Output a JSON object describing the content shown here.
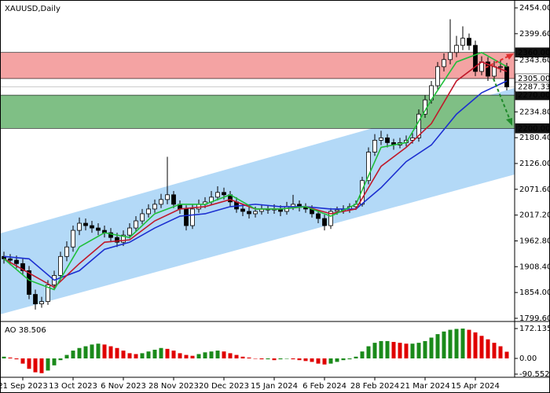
{
  "chart_data": {
    "type": "candlestick",
    "title": "XAUUSD,Daily",
    "categories": [
      null,
      null,
      null,
      "21 Sep 2023",
      null,
      null,
      null,
      null,
      null,
      null,
      null,
      "13 Oct 2023",
      null,
      null,
      null,
      null,
      null,
      null,
      null,
      "6 Nov 2023",
      null,
      null,
      null,
      null,
      null,
      null,
      null,
      "28 Nov 2023",
      null,
      null,
      null,
      null,
      null,
      null,
      null,
      "20 Dec 2023",
      null,
      null,
      null,
      null,
      null,
      null,
      null,
      "15 Jan 2024",
      null,
      null,
      null,
      null,
      null,
      null,
      null,
      "6 Feb 2024",
      null,
      null,
      null,
      null,
      null,
      null,
      null,
      "28 Feb 2024",
      null,
      null,
      null,
      null,
      null,
      null,
      null,
      "21 Mar 2024",
      null,
      null,
      null,
      null,
      null,
      null,
      null,
      "15 Apr 2024",
      null,
      null,
      null,
      null,
      null
    ],
    "ohlc": [
      [
        1930,
        1940,
        1915,
        1925
      ],
      [
        1925,
        1935,
        1912,
        1922
      ],
      [
        1922,
        1932,
        1905,
        1915
      ],
      [
        1915,
        1925,
        1890,
        1900
      ],
      [
        1900,
        1910,
        1840,
        1850
      ],
      [
        1850,
        1860,
        1818,
        1830
      ],
      [
        1830,
        1845,
        1822,
        1835
      ],
      [
        1835,
        1880,
        1828,
        1870
      ],
      [
        1870,
        1900,
        1860,
        1890
      ],
      [
        1890,
        1940,
        1882,
        1930
      ],
      [
        1930,
        1962,
        1920,
        1950
      ],
      [
        1950,
        1995,
        1940,
        1985
      ],
      [
        1985,
        2012,
        1975,
        2000
      ],
      [
        2000,
        2010,
        1985,
        1995
      ],
      [
        1995,
        2005,
        1980,
        1990
      ],
      [
        1990,
        2000,
        1975,
        1985
      ],
      [
        1985,
        1995,
        1970,
        1980
      ],
      [
        1980,
        1990,
        1960,
        1970
      ],
      [
        1970,
        1980,
        1950,
        1960
      ],
      [
        1960,
        1985,
        1952,
        1975
      ],
      [
        1975,
        2000,
        1968,
        1990
      ],
      [
        1990,
        2015,
        1982,
        2005
      ],
      [
        2005,
        2030,
        1998,
        2020
      ],
      [
        2020,
        2040,
        2012,
        2030
      ],
      [
        2030,
        2050,
        2022,
        2040
      ],
      [
        2040,
        2062,
        2032,
        2050
      ],
      [
        2050,
        2140,
        2040,
        2060
      ],
      [
        2060,
        2068,
        2032,
        2040
      ],
      [
        2040,
        2048,
        2020,
        2030
      ],
      [
        2030,
        2038,
        1985,
        1995
      ],
      [
        1995,
        2040,
        1988,
        2030
      ],
      [
        2030,
        2050,
        2022,
        2040
      ],
      [
        2040,
        2055,
        2032,
        2045
      ],
      [
        2045,
        2068,
        2038,
        2055
      ],
      [
        2055,
        2078,
        2048,
        2065
      ],
      [
        2065,
        2075,
        2050,
        2060
      ],
      [
        2060,
        2068,
        2035,
        2045
      ],
      [
        2045,
        2055,
        2022,
        2030
      ],
      [
        2030,
        2040,
        2015,
        2025
      ],
      [
        2025,
        2035,
        2010,
        2020
      ],
      [
        2020,
        2035,
        2012,
        2025
      ],
      [
        2025,
        2040,
        2018,
        2030
      ],
      [
        2030,
        2038,
        2020,
        2028
      ],
      [
        2028,
        2040,
        2020,
        2030
      ],
      [
        2030,
        2038,
        2015,
        2025
      ],
      [
        2025,
        2045,
        2018,
        2035
      ],
      [
        2035,
        2060,
        2028,
        2040
      ],
      [
        2040,
        2048,
        2025,
        2035
      ],
      [
        2035,
        2042,
        2022,
        2030
      ],
      [
        2030,
        2038,
        2012,
        2020
      ],
      [
        2020,
        2028,
        2000,
        2010
      ],
      [
        2010,
        2018,
        1985,
        1995
      ],
      [
        1995,
        2032,
        1988,
        2025
      ],
      [
        2025,
        2035,
        2018,
        2028
      ],
      [
        2028,
        2038,
        2020,
        2030
      ],
      [
        2030,
        2042,
        2022,
        2035
      ],
      [
        2035,
        2048,
        2028,
        2040
      ],
      [
        2040,
        2098,
        2035,
        2090
      ],
      [
        2090,
        2160,
        2082,
        2150
      ],
      [
        2150,
        2188,
        2142,
        2175
      ],
      [
        2175,
        2195,
        2165,
        2180
      ],
      [
        2180,
        2188,
        2160,
        2170
      ],
      [
        2170,
        2178,
        2155,
        2165
      ],
      [
        2165,
        2180,
        2158,
        2170
      ],
      [
        2170,
        2185,
        2162,
        2175
      ],
      [
        2175,
        2190,
        2168,
        2180
      ],
      [
        2180,
        2240,
        2172,
        2230
      ],
      [
        2230,
        2270,
        2222,
        2260
      ],
      [
        2260,
        2300,
        2252,
        2290
      ],
      [
        2290,
        2340,
        2282,
        2330
      ],
      [
        2330,
        2358,
        2320,
        2345
      ],
      [
        2345,
        2430,
        2335,
        2360
      ],
      [
        2360,
        2395,
        2350,
        2375
      ],
      [
        2375,
        2415,
        2365,
        2390
      ],
      [
        2390,
        2400,
        2365,
        2375
      ],
      [
        2375,
        2385,
        2310,
        2320
      ],
      [
        2320,
        2352,
        2312,
        2340
      ],
      [
        2340,
        2350,
        2300,
        2310
      ],
      [
        2310,
        2342,
        2302,
        2330
      ],
      [
        2330,
        2345,
        2318,
        2330
      ],
      [
        2330,
        2338,
        2280,
        2287.33
      ]
    ],
    "up_color": "#ffffff",
    "down_color": "#000000",
    "ylim": [
      1794.6,
      2470.6
    ],
    "yticks": [
      {
        "value": 2454,
        "label": "2454.00"
      },
      {
        "value": 2399.6,
        "label": "2399.60"
      },
      {
        "value": 2343.6,
        "label": "2343.60"
      },
      {
        "value": 2234.8,
        "label": "2234.80"
      },
      {
        "value": 2180.4,
        "label": "2180.40"
      },
      {
        "value": 2126,
        "label": "2126.00"
      },
      {
        "value": 2071.6,
        "label": "2071.60"
      },
      {
        "value": 2017.2,
        "label": "2017.20"
      },
      {
        "value": 1962.8,
        "label": "1962.80"
      },
      {
        "value": 1908.4,
        "label": "1908.40"
      },
      {
        "value": 1854,
        "label": "1854.00"
      },
      {
        "value": 1799.6,
        "label": "1799.60"
      }
    ],
    "zones": [
      {
        "top": {
          "value": 2360,
          "label": "2360.00"
        },
        "bottom": {
          "value": 2305,
          "label": "2305.00"
        },
        "color": "#f4a3a3"
      },
      {
        "top": {
          "value": 2270,
          "label": "2270.00"
        },
        "bottom": {
          "value": 2200,
          "label": "2200.00"
        },
        "color": "#7fbf85"
      }
    ],
    "price": {
      "value": 2287.33,
      "label": "2287.33"
    },
    "x": [
      0,
      4,
      8,
      12,
      16,
      20,
      24,
      28,
      32,
      36,
      40,
      44,
      48,
      52,
      56,
      60,
      64,
      68,
      72,
      76,
      80
    ],
    "series": [
      {
        "color": "#1c2fd0",
        "values": [
          1930,
          1925,
          1880,
          1900,
          1945,
          1960,
          1990,
          2015,
          2020,
          2035,
          2040,
          2035,
          2035,
          2030,
          2030,
          2075,
          2130,
          2165,
          2230,
          2275,
          2300
        ]
      },
      {
        "color": "#c0182a",
        "values": [
          1925,
          1895,
          1865,
          1915,
          1960,
          1965,
          2005,
          2030,
          2035,
          2050,
          2030,
          2030,
          2035,
          2020,
          2030,
          2120,
          2160,
          2210,
          2300,
          2340,
          2320
        ]
      },
      {
        "color": "#1fbf3a",
        "values": [
          1925,
          1880,
          1860,
          1950,
          1980,
          1970,
          2020,
          2040,
          2040,
          2060,
          2030,
          2030,
          2035,
          2015,
          2040,
          2160,
          2170,
          2260,
          2340,
          2360,
          2330
        ]
      }
    ],
    "indicator": {
      "label": "AO 38.506",
      "values": [
        10,
        5,
        -5,
        -30,
        -60,
        -80,
        -85,
        -70,
        -40,
        -10,
        20,
        45,
        60,
        70,
        80,
        85,
        80,
        70,
        60,
        45,
        30,
        25,
        30,
        40,
        50,
        60,
        55,
        45,
        30,
        20,
        15,
        25,
        35,
        40,
        45,
        40,
        30,
        20,
        10,
        5,
        0,
        -5,
        -5,
        -10,
        -5,
        0,
        -5,
        -10,
        -15,
        -20,
        -30,
        -35,
        -30,
        -20,
        -10,
        -5,
        10,
        40,
        70,
        90,
        100,
        100,
        95,
        90,
        85,
        85,
        90,
        100,
        120,
        140,
        155,
        165,
        170,
        172,
        165,
        150,
        130,
        110,
        90,
        70,
        38.506
      ],
      "up_color": "#1a8a1a",
      "down_color": "#e00000",
      "ylim": [
        -99.7,
        208.4
      ],
      "yticks": [
        172.135,
        {
          "value": 0,
          "label": "0.00"
        },
        -90.552
      ]
    }
  }
}
